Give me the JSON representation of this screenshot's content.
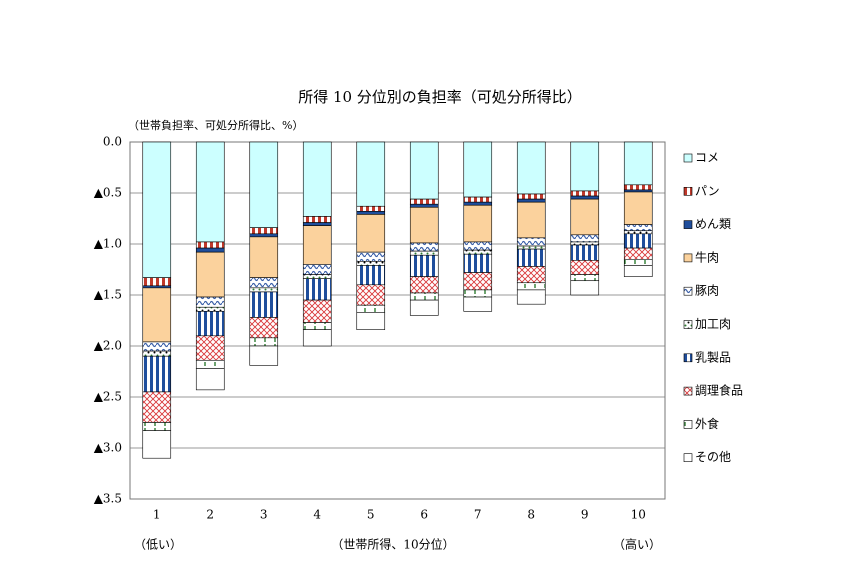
{
  "chart_data": {
    "type": "bar",
    "stacked": true,
    "title": "所得 10 分位別の負担率（可処分所得比）",
    "y_label": "（世帯負担率、可処分所得比、%）",
    "x_label": "（世帯所得、10分位）",
    "annotations": [
      "（低い）",
      "（高い）"
    ],
    "categories": [
      "1",
      "2",
      "3",
      "4",
      "5",
      "6",
      "7",
      "8",
      "9",
      "10"
    ],
    "ylim": [
      0,
      -3.5
    ],
    "yticks": [
      {
        "value": 0,
        "label": "0.0"
      },
      {
        "value": -0.5,
        "label": "▲0.5"
      },
      {
        "value": -1,
        "label": "▲1.0"
      },
      {
        "value": -1.5,
        "label": "▲1.5"
      },
      {
        "value": -2,
        "label": "▲2.0"
      },
      {
        "value": -2.5,
        "label": "▲2.5"
      },
      {
        "value": -3,
        "label": "▲3.0"
      },
      {
        "value": -3.5,
        "label": "▲3.5"
      }
    ],
    "grid": true,
    "legend": "right",
    "series": [
      {
        "name": "コメ",
        "color": "#ccffff",
        "pattern": "solid",
        "values": [
          -1.33,
          -0.98,
          -0.84,
          -0.73,
          -0.63,
          -0.56,
          -0.54,
          -0.51,
          -0.48,
          -0.42
        ]
      },
      {
        "name": "パン",
        "color": "#c0392b",
        "pattern": "vstripe",
        "values": [
          -0.08,
          -0.06,
          -0.06,
          -0.06,
          -0.05,
          -0.05,
          -0.05,
          -0.05,
          -0.05,
          -0.05
        ]
      },
      {
        "name": "めん類",
        "color": "#1f4e9c",
        "pattern": "solid",
        "values": [
          -0.02,
          -0.04,
          -0.03,
          -0.03,
          -0.03,
          -0.03,
          -0.03,
          -0.03,
          -0.03,
          -0.02
        ]
      },
      {
        "name": "牛肉",
        "color": "#fbd29d",
        "pattern": "solid",
        "values": [
          -0.53,
          -0.44,
          -0.4,
          -0.38,
          -0.37,
          -0.35,
          -0.36,
          -0.35,
          -0.35,
          -0.32
        ]
      },
      {
        "name": "豚肉",
        "color": "#3a5fa8",
        "pattern": "wave",
        "values": [
          -0.09,
          -0.1,
          -0.1,
          -0.1,
          -0.09,
          -0.08,
          -0.08,
          -0.08,
          -0.07,
          -0.06
        ]
      },
      {
        "name": "加工肉",
        "color": "#2e7d32",
        "pattern": "dots",
        "values": [
          -0.05,
          -0.04,
          -0.04,
          -0.04,
          -0.04,
          -0.04,
          -0.04,
          -0.03,
          -0.03,
          -0.03
        ]
      },
      {
        "name": "乳製品",
        "color": "#1f4e9c",
        "pattern": "vstripe",
        "values": [
          -0.35,
          -0.24,
          -0.25,
          -0.21,
          -0.19,
          -0.21,
          -0.18,
          -0.17,
          -0.15,
          -0.14
        ]
      },
      {
        "name": "調理食品",
        "color": "#d9383a",
        "pattern": "cross",
        "values": [
          -0.3,
          -0.24,
          -0.2,
          -0.22,
          -0.2,
          -0.16,
          -0.17,
          -0.16,
          -0.14,
          -0.11
        ]
      },
      {
        "name": "外食",
        "color": "#2e7d32",
        "pattern": "ticks",
        "values": [
          -0.08,
          -0.08,
          -0.08,
          -0.07,
          -0.07,
          -0.07,
          -0.07,
          -0.07,
          -0.06,
          -0.06
        ]
      },
      {
        "name": "その他",
        "color": "#ffffff",
        "pattern": "solid",
        "values": [
          -0.27,
          -0.21,
          -0.19,
          -0.16,
          -0.17,
          -0.15,
          -0.14,
          -0.14,
          -0.14,
          -0.11
        ]
      }
    ]
  }
}
